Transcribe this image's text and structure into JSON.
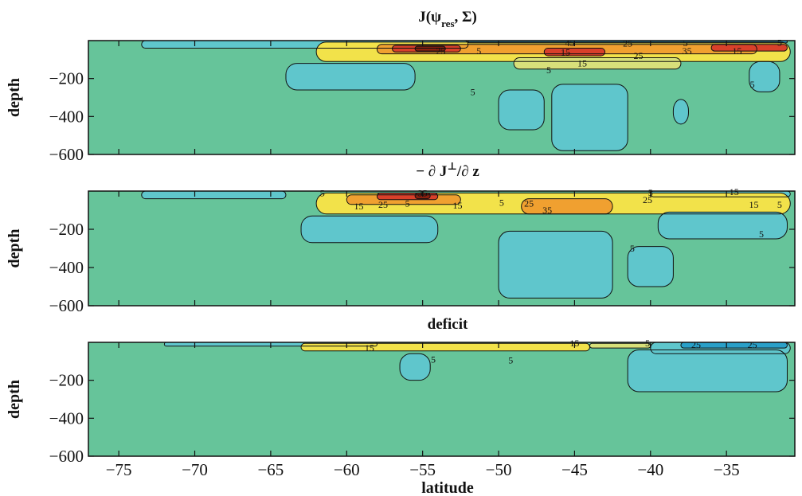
{
  "figure": {
    "xlabel": "latitude",
    "xticks": [
      -75,
      -70,
      -65,
      -60,
      -55,
      -50,
      -45,
      -40,
      -35
    ],
    "xlim": [
      -77,
      -30.5
    ],
    "colors": {
      "background": "#66c49a",
      "negative": "#5fc6cc",
      "negative_strong": "#2aa0c8",
      "low_positive": "#d8e07a",
      "positive": "#f2e24a",
      "mid_positive": "#f0a030",
      "high_positive": "#d9402a",
      "strong_positive": "#8a2010",
      "contour": "#111111"
    }
  },
  "chart_data": [
    {
      "type": "heatmap",
      "title_main": "J(ψ",
      "title_sub": "res",
      "title_end": ", Σ)",
      "xlabel": "",
      "ylabel": "depth",
      "yticks": [
        -200,
        -400,
        -600
      ],
      "ylim": [
        -600,
        0
      ],
      "contour_labels": [
        {
          "text": "45",
          "lat": -45.3,
          "depth": -12
        },
        {
          "text": "25",
          "lat": -41.5,
          "depth": -15
        },
        {
          "text": "5",
          "lat": -37.7,
          "depth": -12
        },
        {
          "text": "5",
          "lat": -31.5,
          "depth": -10
        },
        {
          "text": "25",
          "lat": -53.8,
          "depth": -55
        },
        {
          "text": "5",
          "lat": -51.3,
          "depth": -55
        },
        {
          "text": "15",
          "lat": -45.6,
          "depth": -60
        },
        {
          "text": "35",
          "lat": -37.6,
          "depth": -55
        },
        {
          "text": "15",
          "lat": -34.3,
          "depth": -55
        },
        {
          "text": "25",
          "lat": -40.8,
          "depth": -80
        },
        {
          "text": "15",
          "lat": -44.5,
          "depth": -120
        },
        {
          "text": "5",
          "lat": -46.7,
          "depth": -155
        },
        {
          "text": "5",
          "lat": -33.3,
          "depth": -230
        },
        {
          "text": "5",
          "lat": -51.7,
          "depth": -270
        }
      ]
    },
    {
      "type": "heatmap",
      "title_main": "− ∂ J",
      "title_sup": "⊥",
      "title_end": "/∂ z",
      "xlabel": "",
      "ylabel": "depth",
      "yticks": [
        -200,
        -400,
        -600
      ],
      "ylim": [
        -600,
        0
      ],
      "contour_labels": [
        {
          "text": "5",
          "lat": -40.0,
          "depth": -8
        },
        {
          "text": "15",
          "lat": -34.5,
          "depth": -5
        },
        {
          "text": "35",
          "lat": -55.0,
          "depth": -10
        },
        {
          "text": "15",
          "lat": -59.2,
          "depth": -80
        },
        {
          "text": "25",
          "lat": -57.6,
          "depth": -70
        },
        {
          "text": "5",
          "lat": -56.0,
          "depth": -65
        },
        {
          "text": "15",
          "lat": -52.7,
          "depth": -75
        },
        {
          "text": "5",
          "lat": -49.8,
          "depth": -60
        },
        {
          "text": "25",
          "lat": -48.0,
          "depth": -65
        },
        {
          "text": "35",
          "lat": -46.8,
          "depth": -100
        },
        {
          "text": "25",
          "lat": -40.2,
          "depth": -45
        },
        {
          "text": "15",
          "lat": -33.2,
          "depth": -70
        },
        {
          "text": "5",
          "lat": -31.5,
          "depth": -70
        },
        {
          "text": "5",
          "lat": -32.7,
          "depth": -225
        },
        {
          "text": "5",
          "lat": -41.2,
          "depth": -300
        },
        {
          "text": "5",
          "lat": -61.6,
          "depth": -10
        }
      ]
    },
    {
      "type": "heatmap",
      "title_main": "deficit",
      "xlabel": "latitude",
      "ylabel": "depth",
      "yticks": [
        -200,
        -400,
        -600
      ],
      "ylim": [
        -600,
        0
      ],
      "contour_labels": [
        {
          "text": "15",
          "lat": -58.5,
          "depth": -30
        },
        {
          "text": "15",
          "lat": -45.0,
          "depth": -5
        },
        {
          "text": "5",
          "lat": -40.2,
          "depth": -5
        },
        {
          "text": "25",
          "lat": -37.0,
          "depth": -12
        },
        {
          "text": "25",
          "lat": -33.3,
          "depth": -12
        },
        {
          "text": "5",
          "lat": -49.2,
          "depth": -95
        },
        {
          "text": "5",
          "lat": -54.3,
          "depth": -90
        }
      ]
    }
  ]
}
